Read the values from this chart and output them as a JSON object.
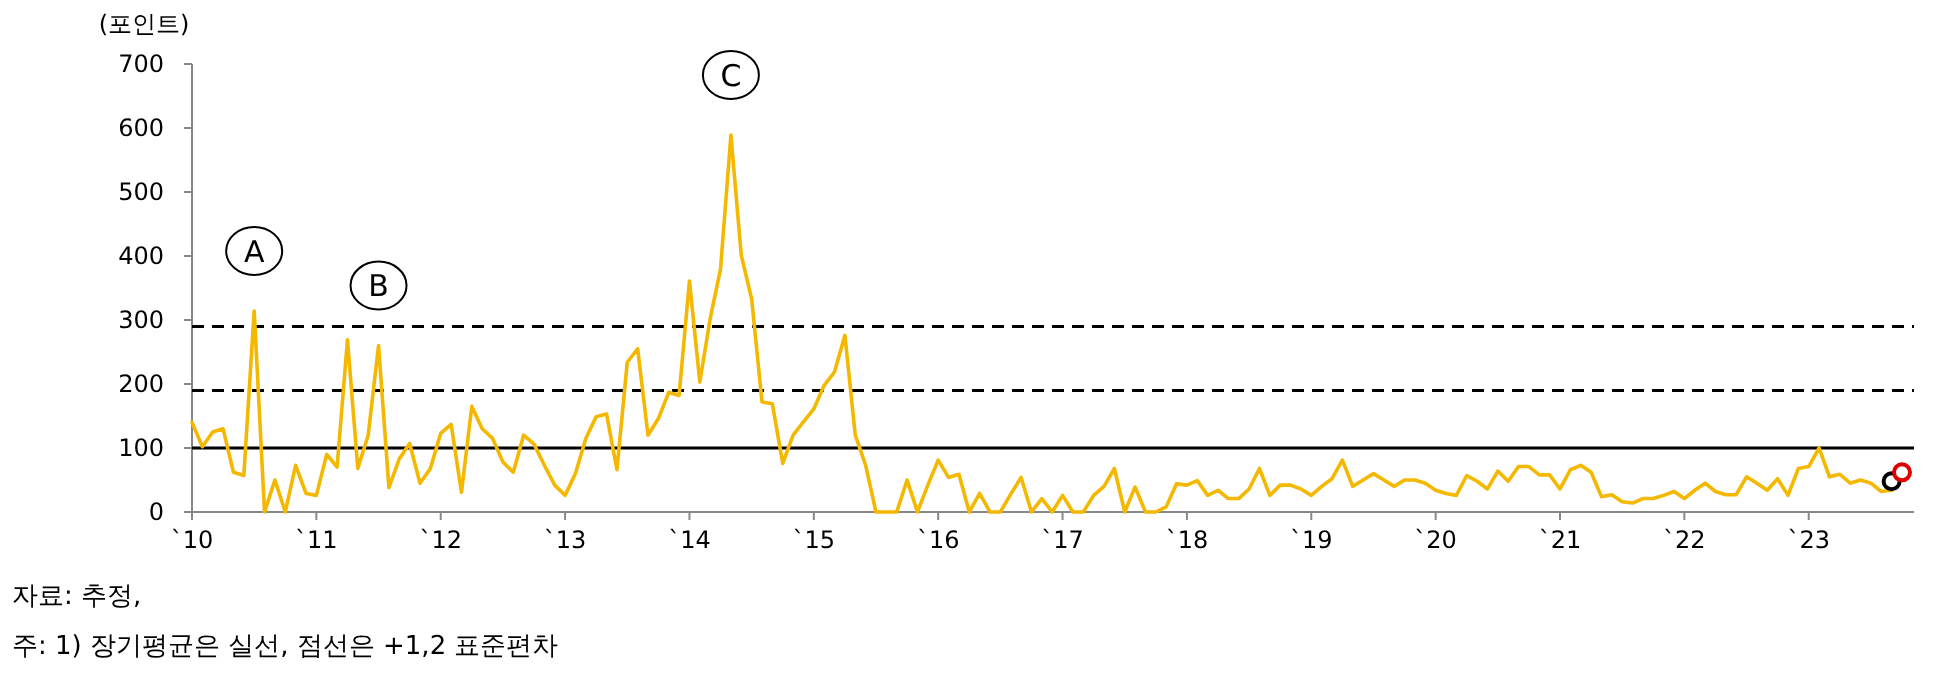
{
  "chart_data": {
    "type": "line",
    "ylabel": "(포인트)",
    "categories": [
      "`10",
      null,
      null,
      null,
      null,
      null,
      null,
      null,
      null,
      null,
      null,
      null,
      "`11",
      null,
      null,
      null,
      null,
      null,
      null,
      null,
      null,
      null,
      null,
      null,
      "`12",
      null,
      null,
      null,
      null,
      null,
      null,
      null,
      null,
      null,
      null,
      null,
      "`13",
      null,
      null,
      null,
      null,
      null,
      null,
      null,
      null,
      null,
      null,
      null,
      "`14",
      null,
      null,
      null,
      null,
      null,
      null,
      null,
      null,
      null,
      null,
      null,
      "`15",
      null,
      null,
      null,
      null,
      null,
      null,
      null,
      null,
      null,
      null,
      null,
      "`16",
      null,
      null,
      null,
      null,
      null,
      null,
      null,
      null,
      null,
      null,
      null,
      "`17",
      null,
      null,
      null,
      null,
      null,
      null,
      null,
      null,
      null,
      null,
      null,
      "`18",
      null,
      null,
      null,
      null,
      null,
      null,
      null,
      null,
      null,
      null,
      null,
      "`19",
      null,
      null,
      null,
      null,
      null,
      null,
      null,
      null,
      null,
      null,
      null,
      "`20",
      null,
      null,
      null,
      null,
      null,
      null,
      null,
      null,
      null,
      null,
      null,
      "`21",
      null,
      null,
      null,
      null,
      null,
      null,
      null,
      null,
      null,
      null,
      null,
      "`22",
      null,
      null,
      null,
      null,
      null,
      null,
      null,
      null,
      null,
      null,
      null,
      "`23",
      null,
      null,
      null,
      null,
      null,
      null,
      null,
      null,
      null
    ],
    "ylim": [
      0,
      700
    ],
    "yticks": [
      0,
      100,
      200,
      300,
      400,
      500,
      600,
      700
    ],
    "grid": false,
    "series": [
      {
        "color": "#f5b800",
        "line_style": "solid",
        "values": [
          140,
          102,
          125,
          130,
          62,
          57,
          314,
          0,
          50,
          0,
          73,
          29,
          26,
          90,
          70,
          269,
          68,
          120,
          260,
          38,
          83,
          107,
          45,
          68,
          123,
          137,
          31,
          165,
          130,
          115,
          78,
          62,
          120,
          106,
          73,
          42,
          26,
          60,
          115,
          149,
          153,
          66,
          234,
          255,
          120,
          146,
          187,
          182,
          361,
          203,
          302,
          380,
          589,
          401,
          333,
          172,
          169,
          76,
          120,
          141,
          161,
          198,
          219,
          276,
          120,
          73,
          0,
          0,
          0,
          50,
          0,
          42,
          81,
          54,
          59,
          0,
          29,
          0,
          0,
          28,
          54,
          0,
          21,
          0,
          26,
          0,
          0,
          26,
          40,
          68,
          0,
          39,
          0,
          0,
          8,
          44,
          42,
          49,
          26,
          34,
          21,
          21,
          36,
          68,
          26,
          42,
          42,
          36,
          26,
          40,
          52,
          81,
          40,
          50,
          60,
          50,
          40,
          50,
          50,
          45,
          34,
          29,
          26,
          57,
          48,
          36,
          64,
          48,
          71,
          71,
          58,
          58,
          36,
          66,
          73,
          62,
          24,
          27,
          16,
          14,
          21,
          21,
          26,
          32,
          21,
          34,
          45,
          32,
          27,
          27,
          55,
          45,
          34,
          52,
          26,
          68,
          71,
          100,
          55,
          59,
          45,
          50,
          45,
          32,
          34,
          null
        ]
      },
      {
        "type": "scatter",
        "color": "#000000",
        "marker": "circle",
        "values": [
          null,
          null,
          null,
          null,
          null,
          null,
          null,
          null,
          null,
          null,
          null,
          null,
          null,
          null,
          null,
          null,
          null,
          null,
          null,
          null,
          null,
          null,
          null,
          null,
          null,
          null,
          null,
          null,
          null,
          null,
          null,
          null,
          null,
          null,
          null,
          null,
          null,
          null,
          null,
          null,
          null,
          null,
          null,
          null,
          null,
          null,
          null,
          null,
          null,
          null,
          null,
          null,
          null,
          null,
          null,
          null,
          null,
          null,
          null,
          null,
          null,
          null,
          null,
          null,
          null,
          null,
          null,
          null,
          null,
          null,
          null,
          null,
          null,
          null,
          null,
          null,
          null,
          null,
          null,
          null,
          null,
          null,
          null,
          null,
          null,
          null,
          null,
          null,
          null,
          null,
          null,
          null,
          null,
          null,
          null,
          null,
          null,
          null,
          null,
          null,
          null,
          null,
          null,
          null,
          null,
          null,
          null,
          null,
          null,
          null,
          null,
          null,
          null,
          null,
          null,
          null,
          null,
          null,
          null,
          null,
          null,
          null,
          null,
          null,
          null,
          null,
          null,
          null,
          null,
          null,
          null,
          null,
          null,
          null,
          null,
          null,
          null,
          null,
          null,
          null,
          null,
          null,
          null,
          null,
          null,
          null,
          null,
          null,
          null,
          null,
          null,
          null,
          null,
          null,
          null,
          null,
          null,
          null,
          null,
          null,
          null,
          null,
          null,
          null,
          48,
          null
        ]
      },
      {
        "type": "scatter",
        "color": "#e00000",
        "marker": "circle",
        "values": [
          null,
          null,
          null,
          null,
          null,
          null,
          null,
          null,
          null,
          null,
          null,
          null,
          null,
          null,
          null,
          null,
          null,
          null,
          null,
          null,
          null,
          null,
          null,
          null,
          null,
          null,
          null,
          null,
          null,
          null,
          null,
          null,
          null,
          null,
          null,
          null,
          null,
          null,
          null,
          null,
          null,
          null,
          null,
          null,
          null,
          null,
          null,
          null,
          null,
          null,
          null,
          null,
          null,
          null,
          null,
          null,
          null,
          null,
          null,
          null,
          null,
          null,
          null,
          null,
          null,
          null,
          null,
          null,
          null,
          null,
          null,
          null,
          null,
          null,
          null,
          null,
          null,
          null,
          null,
          null,
          null,
          null,
          null,
          null,
          null,
          null,
          null,
          null,
          null,
          null,
          null,
          null,
          null,
          null,
          null,
          null,
          null,
          null,
          null,
          null,
          null,
          null,
          null,
          null,
          null,
          null,
          null,
          null,
          null,
          null,
          null,
          null,
          null,
          null,
          null,
          null,
          null,
          null,
          null,
          null,
          null,
          null,
          null,
          null,
          null,
          null,
          null,
          null,
          null,
          null,
          null,
          null,
          null,
          null,
          null,
          null,
          null,
          null,
          null,
          null,
          null,
          null,
          null,
          null,
          null,
          null,
          null,
          null,
          null,
          null,
          null,
          null,
          null,
          null,
          null,
          null,
          null,
          null,
          null,
          null,
          null,
          null,
          null,
          null,
          null,
          62
        ]
      }
    ],
    "ref_lines": [
      {
        "axis": "y",
        "value": 100,
        "color": "#000000",
        "line_style": "solid"
      },
      {
        "axis": "y",
        "value": 190,
        "color": "#000000",
        "line_style": "dashed"
      },
      {
        "axis": "y",
        "value": 290,
        "color": "#000000",
        "line_style": "dashed"
      }
    ],
    "annotations": [
      {
        "text": "A",
        "y": 314
      },
      {
        "text": "B",
        "y": 260
      },
      {
        "text": "C",
        "y": 589
      },
      "자료: 추정,",
      "주: 1) 장기평균은 실선, 점선은 +1,2 표준편차"
    ]
  }
}
